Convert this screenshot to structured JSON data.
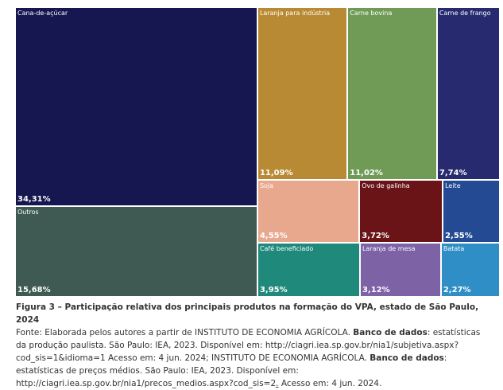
{
  "chart_data": {
    "type": "treemap",
    "items": [
      {
        "name": "Cana-de-açúcar",
        "value": 34.31,
        "label": "34,31%",
        "color": "#161650"
      },
      {
        "name": "Outros",
        "value": 15.68,
        "label": "15,68%",
        "color": "#3e5a52"
      },
      {
        "name": "Laranja para indústria",
        "value": 11.09,
        "label": "11,09%",
        "color": "#b98a34"
      },
      {
        "name": "Carne bovina",
        "value": 11.02,
        "label": "11,02%",
        "color": "#6f9b57"
      },
      {
        "name": "Carne de frango",
        "value": 7.74,
        "label": "7,74%",
        "color": "#272a6e"
      },
      {
        "name": "Soja",
        "value": 4.55,
        "label": "4,55%",
        "color": "#e8a88e"
      },
      {
        "name": "Ovo de galinha",
        "value": 3.72,
        "label": "3,72%",
        "color": "#6a1417"
      },
      {
        "name": "Leite",
        "value": 2.55,
        "label": "2,55%",
        "color": "#234a92"
      },
      {
        "name": "Café beneficiado",
        "value": 3.95,
        "label": "3,95%",
        "color": "#1f8a7c"
      },
      {
        "name": "Laranja de mesa",
        "value": 3.12,
        "label": "3,12%",
        "color": "#7d62a6"
      },
      {
        "name": "Batata",
        "value": 2.27,
        "label": "2,27%",
        "color": "#2f8ec6"
      }
    ]
  },
  "caption": {
    "fig_label": "Figura 3",
    "fig_title": " – Participação relativa dos principais produtos na formação do VPA, estado de São Paulo, 2024",
    "source_prefix": "Fonte: Elaborada pelos autores a partir de INSTITUTO DE ECONOMIA AGRÍCOLA. ",
    "bd_label_1": "Banco de dados",
    "source_part2": ": estatísticas da produção paulista. São Paulo: IEA, 2023. Disponível em: http://ciagri.iea.sp.gov.br/nia1/subjetiva.aspx?cod_sis=1&idioma=1 Acesso em: 4 jun. 2024; INSTITUTO DE ECONOMIA AGRÍCOLA. ",
    "bd_label_2": "Banco de dados",
    "source_part3": ": estatísticas de preços médios. São Paulo: IEA, 2023. Disponível em: http://ciagri.iea.sp.gov.br/nia1/precos_medios.aspx?cod_sis=2",
    "source_underlined": ".",
    "source_end": " Acesso em: 4 jun. 2024."
  }
}
